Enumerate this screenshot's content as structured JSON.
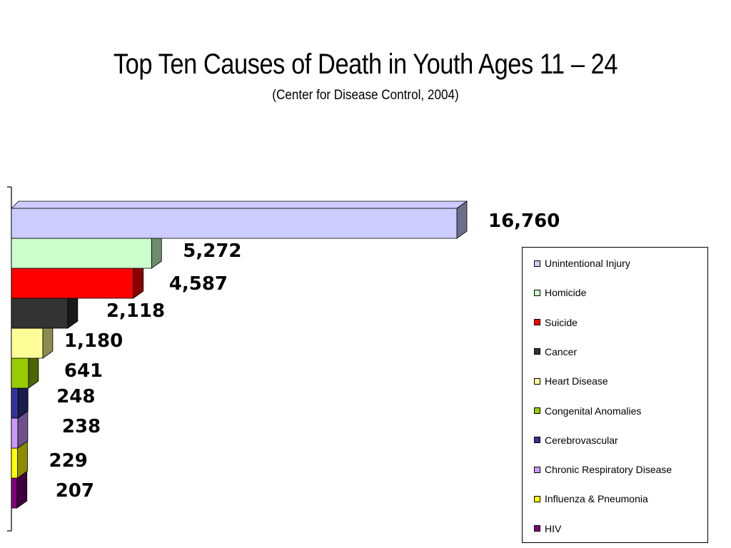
{
  "title": "Top Ten Causes of Death in Youth Ages  11 – 24",
  "subtitle": "(Center for Disease Control, 2004)",
  "chart_data": {
    "type": "bar",
    "orientation": "horizontal",
    "style": "3d",
    "title": "Top Ten Causes of Death in Youth Ages  11 – 24",
    "subtitle": "(Center for Disease Control, 2004)",
    "xlabel": "",
    "ylabel": "",
    "grid": false,
    "legend_position": "right",
    "categories": [
      "Unintentional Injury",
      "Homicide",
      "Suicide",
      "Cancer",
      "Heart Disease",
      "Congenital Anomalies",
      "Cerebrovascular",
      "Chronic Respiratory Disease",
      "Influenza & Pneumonia",
      "HIV"
    ],
    "values": [
      16760,
      5272,
      4587,
      2118,
      1180,
      641,
      248,
      238,
      229,
      207
    ],
    "value_labels": [
      "16,760",
      "5,272",
      "4,587",
      "2,118",
      "1,180",
      "641",
      "248",
      "238",
      "229",
      "207"
    ],
    "colors": [
      "#CCCCFF",
      "#CCFFCC",
      "#FF0000",
      "#333333",
      "#FFFF99",
      "#99CC00",
      "#333399",
      "#CC99FF",
      "#FFFF00",
      "#800080"
    ],
    "side_colors": [
      "#6E6E8C",
      "#6E8C6E",
      "#8C0000",
      "#1A1A1A",
      "#8C8C50",
      "#4D6600",
      "#1A1A4D",
      "#6E508C",
      "#8C8C00",
      "#400040"
    ]
  }
}
